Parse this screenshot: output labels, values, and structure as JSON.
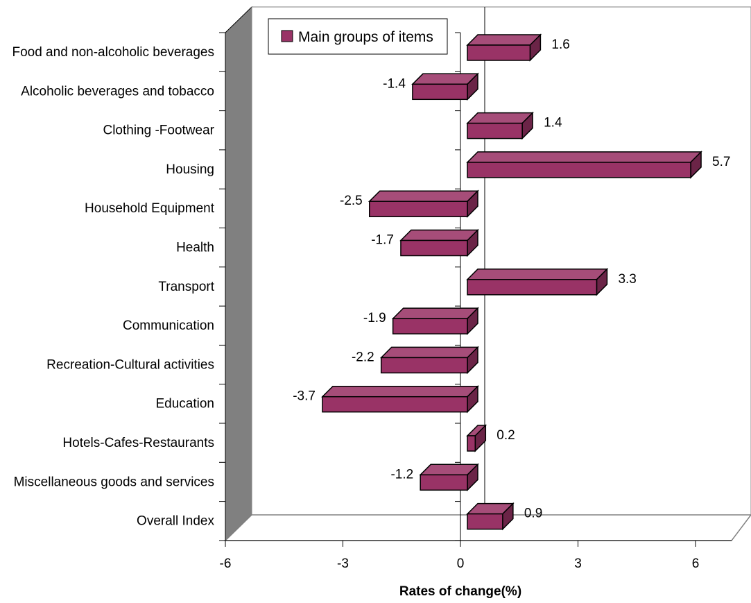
{
  "chart_data": {
    "type": "bar",
    "orientation": "horizontal",
    "three_d": true,
    "categories": [
      "Food and non-alcoholic beverages",
      "Alcoholic beverages and tobacco",
      "Clothing -Footwear",
      "Housing",
      "Household Equipment",
      "Health",
      "Transport",
      "Communication",
      "Recreation-Cultural activities",
      "Education",
      "Hotels-Cafes-Restaurants",
      "Miscellaneous goods and services",
      "Overall Index"
    ],
    "series": [
      {
        "name": "Main groups of items",
        "values": [
          1.6,
          -1.4,
          1.4,
          5.7,
          -2.5,
          -1.7,
          3.3,
          -1.9,
          -2.2,
          -3.7,
          0.2,
          -1.2,
          0.9
        ],
        "labels": [
          "1.6",
          "-1.4",
          "1.4",
          "5.7",
          "-2.5",
          "-1.7",
          "3.3",
          "-1.9",
          "-2.2",
          "-3.7",
          "0.2",
          "-1.2",
          "0.9"
        ]
      }
    ],
    "x_ticks": [
      -6,
      -3,
      0,
      3,
      6
    ],
    "x_tick_labels": [
      "-6",
      "-3",
      "0",
      "3",
      "6"
    ],
    "xlim": [
      -6,
      7
    ],
    "xlabel": "Rates of change(%)",
    "ylabel": "",
    "title": "",
    "legend_position": "top-left",
    "grid": false,
    "colors": {
      "bar_front": "#993366",
      "bar_top": "#a64d79",
      "bar_side": "#6b2447",
      "wall_left": "#808080",
      "outline": "#000000"
    }
  }
}
